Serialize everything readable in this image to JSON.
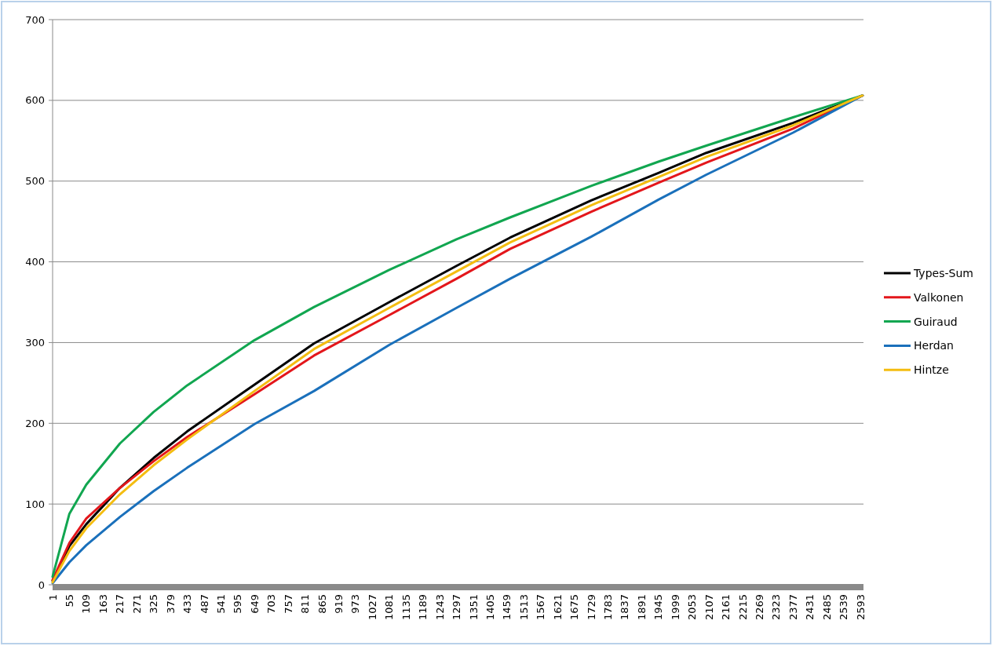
{
  "chart_data": {
    "type": "line",
    "x": [
      1,
      55,
      109,
      217,
      325,
      433,
      649,
      840,
      1081,
      1297,
      1469,
      1729,
      1945,
      2099,
      2377,
      2600
    ],
    "xlim": [
      1,
      2603
    ],
    "xticks": [
      1,
      55,
      109,
      163,
      217,
      271,
      325,
      379,
      433,
      487,
      541,
      595,
      649,
      703,
      757,
      811,
      865,
      919,
      973,
      1027,
      1081,
      1135,
      1189,
      1243,
      1297,
      1351,
      1405,
      1459,
      1513,
      1567,
      1621,
      1675,
      1729,
      1783,
      1837,
      1891,
      1945,
      1999,
      2053,
      2107,
      2161,
      2215,
      2269,
      2323,
      2377,
      2431,
      2485,
      2539,
      2593
    ],
    "ylim": [
      0,
      700
    ],
    "yticks": [
      0,
      100,
      200,
      300,
      400,
      500,
      600,
      700
    ],
    "grid": "y",
    "legend": "right",
    "line_style": "solid",
    "marker": "none",
    "series": [
      {
        "name": "Types-Sum",
        "color": "#000000",
        "values": [
          5,
          48,
          75,
          120,
          157,
          190,
          248,
          299,
          350,
          395,
          430,
          476,
          510,
          535,
          572,
          606
        ]
      },
      {
        "name": "Valkonen",
        "color": "#e3161b",
        "values": [
          6,
          52,
          82,
          120,
          153,
          183,
          236,
          284,
          334,
          379,
          416,
          462,
          498,
          523,
          565,
          606
        ]
      },
      {
        "name": "Guiraud",
        "color": "#11a650",
        "values": [
          10,
          88,
          124,
          175,
          214,
          247,
          303,
          344,
          390,
          428,
          455,
          494,
          524,
          544,
          579,
          606
        ]
      },
      {
        "name": "Herdan",
        "color": "#1a70bb",
        "values": [
          2,
          28,
          49,
          84,
          116,
          145,
          199,
          240,
          297,
          343,
          379,
          431,
          477,
          508,
          560,
          606
        ]
      },
      {
        "name": "Hintze",
        "color": "#f4bd11",
        "values": [
          3,
          42,
          70,
          112,
          148,
          180,
          240,
          292,
          343,
          388,
          424,
          470,
          505,
          530,
          569,
          606
        ]
      }
    ]
  }
}
